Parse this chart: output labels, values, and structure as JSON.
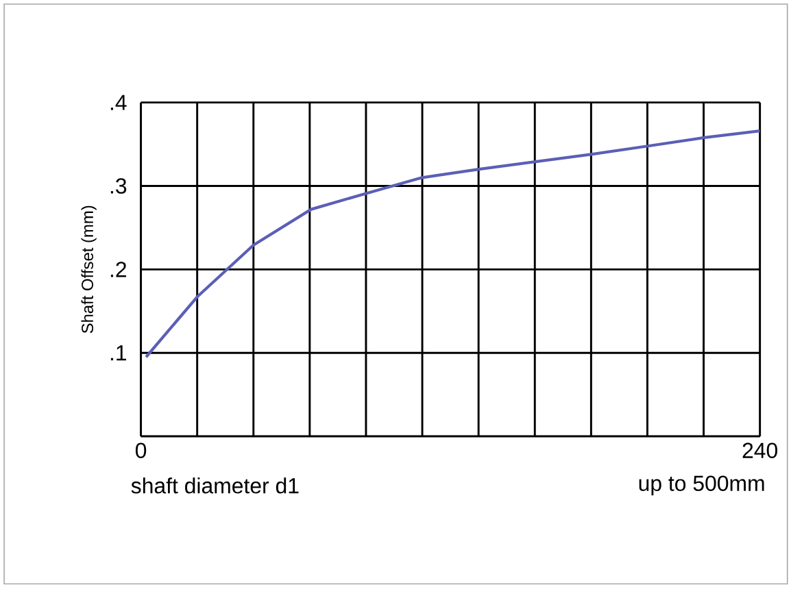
{
  "chart_data": {
    "type": "line",
    "ylabel": "Shaft Offset (mm)",
    "x": [
      2,
      21.8,
      43.6,
      66,
      87.3,
      109,
      131,
      153,
      175,
      197,
      218.5,
      240
    ],
    "values": [
      0.095,
      0.167,
      0.229,
      0.272,
      0.291,
      0.31,
      0.32,
      0.329,
      0.338,
      0.348,
      0.358,
      0.366
    ],
    "color": "#5b5fb5",
    "xlim": [
      0,
      240
    ],
    "ylim": [
      0,
      0.4
    ],
    "xticks": [
      0,
      {
        "value": 21.82,
        "label": null
      },
      {
        "value": 43.64,
        "label": null
      },
      {
        "value": 65.45,
        "label": null
      },
      {
        "value": 87.27,
        "label": null
      },
      {
        "value": 109.09,
        "label": null
      },
      {
        "value": 130.91,
        "label": null
      },
      {
        "value": 152.73,
        "label": null
      },
      {
        "value": 174.55,
        "label": null
      },
      {
        "value": 196.36,
        "label": null
      },
      {
        "value": 218.18,
        "label": null
      },
      240
    ],
    "yticks": [
      {
        "value": 0,
        "label": null
      },
      {
        "value": 0.1,
        "label": ".1"
      },
      {
        "value": 0.2,
        "label": ".2"
      },
      {
        "value": 0.3,
        "label": ".3"
      },
      {
        "value": 0.4,
        "label": ".4"
      }
    ],
    "grid": true,
    "marker": "none",
    "line_style": "solid",
    "annotations": [
      "shaft diameter d1",
      "up to 500mm"
    ]
  }
}
